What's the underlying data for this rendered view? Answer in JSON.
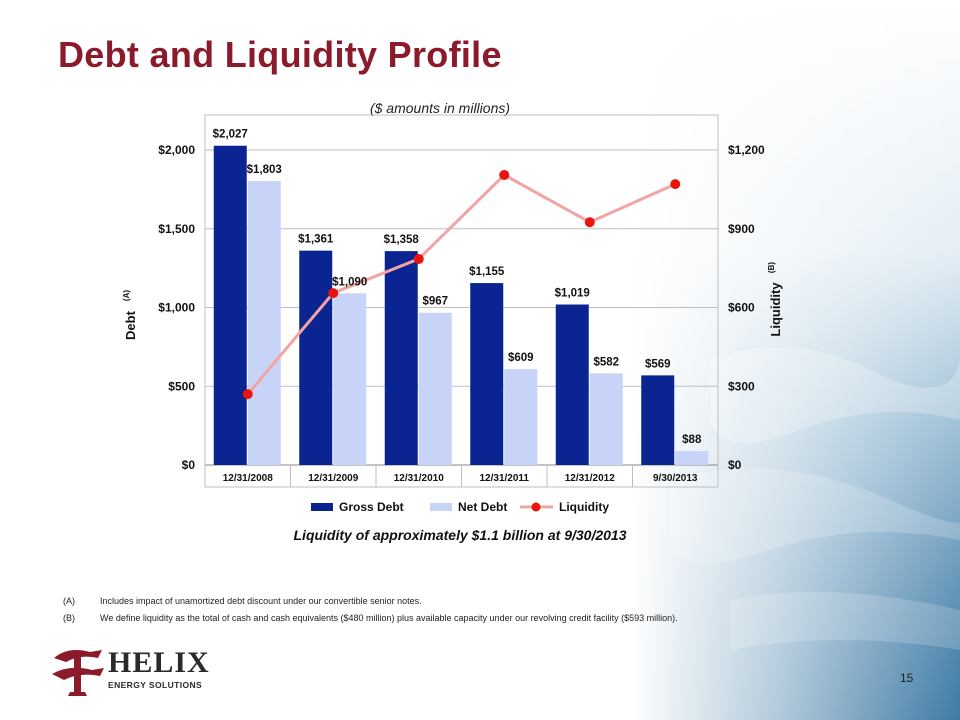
{
  "slide": {
    "title": "Debt and Liquidity Profile",
    "subtitle": "($ amounts in millions)",
    "callout": "Liquidity of approximately $1.1 billion at 9/30/2013",
    "page_number": "15"
  },
  "notes": [
    {
      "mark": "(A)",
      "text": "Includes impact of unamortized debt discount under our convertible senior notes."
    },
    {
      "mark": "(B)",
      "text": "We define liquidity as the total of cash and cash equivalents ($480 million) plus available capacity under our revolving credit facility ($593 million)."
    }
  ],
  "logo": {
    "name": "HELIX",
    "tagline": "ENERGY SOLUTIONS"
  },
  "colors": {
    "title": "#8b1a2b",
    "gross_debt": "#0a2491",
    "net_debt": "#c7d3f7",
    "liquidity_line": "#f2a3a3",
    "liquidity_marker": "#e8150f"
  },
  "chart_data": {
    "type": "bar",
    "categories": [
      "12/31/2008",
      "12/31/2009",
      "12/31/2010",
      "12/31/2011",
      "12/31/2012",
      "9/30/2013"
    ],
    "series": [
      {
        "name": "Gross Debt",
        "type": "bar",
        "axis": "left",
        "values": [
          2027,
          1361,
          1358,
          1155,
          1019,
          569
        ],
        "labels": [
          "$2,027",
          "$1,361",
          "$1,358",
          "$1,155",
          "$1,019",
          "$569"
        ]
      },
      {
        "name": "Net Debt",
        "type": "bar",
        "axis": "left",
        "values": [
          1803,
          1090,
          967,
          609,
          582,
          88
        ],
        "labels": [
          "$1,803",
          "$1,090",
          "$967",
          "$609",
          "$582",
          "$88"
        ]
      },
      {
        "name": "Liquidity",
        "type": "line",
        "axis": "right",
        "values": [
          270,
          655,
          785,
          1105,
          925,
          1070
        ]
      }
    ],
    "ylabel_left": "Debt",
    "ylabel_left_sup": "(A)",
    "ylabel_right": "Liquidity",
    "ylabel_right_sup": "(B)",
    "ylim_left": [
      0,
      2000
    ],
    "ylim_right": [
      0,
      1200
    ],
    "left_ticks": [
      "$0",
      "$500",
      "$1,000",
      "$1,500",
      "$2,000"
    ],
    "right_ticks": [
      "$0",
      "$300",
      "$600",
      "$900",
      "$1,200"
    ],
    "grid": true,
    "legend_position": "bottom"
  }
}
